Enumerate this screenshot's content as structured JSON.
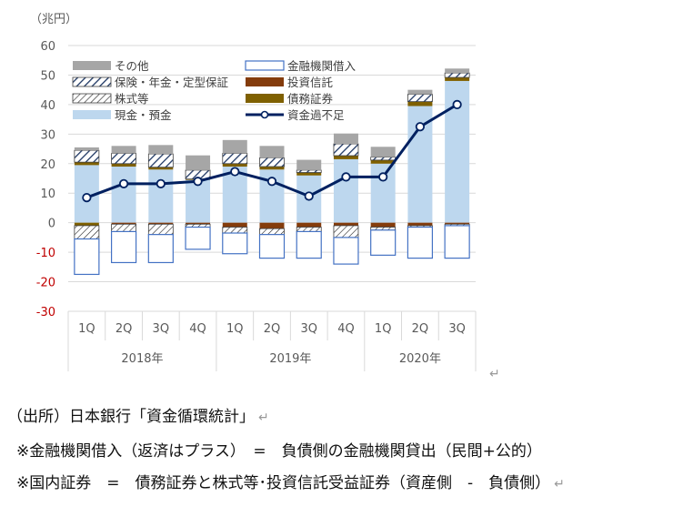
{
  "unit_label": "（兆円）",
  "paragraph_mark": "↵",
  "chart_data": {
    "type": "bar",
    "stacked": true,
    "categories": [
      "1Q",
      "2Q",
      "3Q",
      "4Q",
      "1Q",
      "2Q",
      "3Q",
      "4Q",
      "1Q",
      "2Q",
      "3Q"
    ],
    "years": [
      {
        "label": "2018年",
        "span": 4
      },
      {
        "label": "2019年",
        "span": 4
      },
      {
        "label": "2020年",
        "span": 3
      }
    ],
    "ylim": [
      -30,
      60
    ],
    "yticks": [
      -30,
      -20,
      -10,
      0,
      10,
      20,
      30,
      40,
      50,
      60
    ],
    "grid": true,
    "legend_position": "top-left",
    "positive_series": [
      {
        "name": "現金・預金",
        "key": "cash",
        "color": "#bdd7ee",
        "values": [
          19.5,
          19.0,
          18.0,
          14.5,
          19.0,
          18.0,
          16.0,
          21.5,
          20.0,
          39.5,
          48.0
        ]
      },
      {
        "name": "債務証券",
        "key": "debt",
        "color": "#7f6000",
        "values": [
          1.0,
          1.0,
          0.8,
          0.3,
          1.0,
          1.0,
          1.0,
          1.2,
          1.2,
          1.5,
          1.2
        ]
      },
      {
        "name": "株式等",
        "key": "equity",
        "color": "#ffffff",
        "pattern": "diagonal",
        "values": [
          0,
          0,
          0,
          0,
          0,
          0,
          0,
          0,
          0,
          0,
          0
        ]
      },
      {
        "name": "保険・年金・定型保証",
        "key": "insurance",
        "color": "#ffffff",
        "pattern": "hatch-bold",
        "values": [
          4.0,
          3.5,
          4.5,
          3.0,
          3.5,
          3.0,
          0.8,
          4.0,
          1.0,
          2.5,
          1.5
        ]
      },
      {
        "name": "その他",
        "key": "other",
        "color": "#a6a6a6",
        "values": [
          1.0,
          2.5,
          3.0,
          5.0,
          4.5,
          4.0,
          3.5,
          3.5,
          3.5,
          1.5,
          1.5
        ]
      }
    ],
    "negative_series": [
      {
        "name": "債務証券",
        "key": "debt",
        "color": "#7f6000",
        "values": [
          -1.0,
          0,
          0,
          0,
          0,
          0,
          0,
          0,
          0,
          0,
          0
        ]
      },
      {
        "name": "投資信託",
        "key": "trust",
        "color": "#843c0c",
        "values": [
          0,
          -0.5,
          -0.5,
          -0.5,
          -1.5,
          -2.0,
          -1.5,
          -1.0,
          -1.5,
          -1.0,
          -0.5
        ]
      },
      {
        "name": "株式等",
        "key": "equity",
        "color": "#ffffff",
        "pattern": "diagonal",
        "values": [
          -4.5,
          -2.5,
          -3.5,
          -1.0,
          -2.0,
          -2.0,
          -1.5,
          -4.0,
          -1.0,
          -0.5,
          -0.5
        ]
      },
      {
        "name": "金融機関借入",
        "key": "loan",
        "color": "#ffffff",
        "border": "#4472c4",
        "values": [
          -12.0,
          -10.5,
          -9.5,
          -7.5,
          -7.0,
          -8.0,
          -9.0,
          -9.0,
          -8.5,
          -10.5,
          -11.0
        ]
      }
    ],
    "line_series": {
      "name": "資金過不足",
      "color": "#002060",
      "values": [
        8.5,
        13.2,
        13.2,
        14.0,
        17.3,
        14.0,
        9.0,
        15.5,
        15.5,
        32.5,
        40.0
      ]
    },
    "legend": [
      {
        "name": "その他",
        "key": "other"
      },
      {
        "name": "金融機関借入",
        "key": "loan"
      },
      {
        "name": "保険・年金・定型保証",
        "key": "insurance"
      },
      {
        "name": "投資信託",
        "key": "trust"
      },
      {
        "name": "株式等",
        "key": "equity"
      },
      {
        "name": "債務証券",
        "key": "debt"
      },
      {
        "name": "現金・預金",
        "key": "cash"
      },
      {
        "name": "資金過不足",
        "key": "line"
      }
    ]
  },
  "notes": {
    "source": "（出所）日本銀行「資金循環統計」",
    "note1": "※金融機関借入（返済はプラス）　=　負債側の金融機関貸出（民間+公的）",
    "note2": "※国内証券　=　債務証券と株式等･投資信託受益証券（資産側　-　負債側）"
  }
}
